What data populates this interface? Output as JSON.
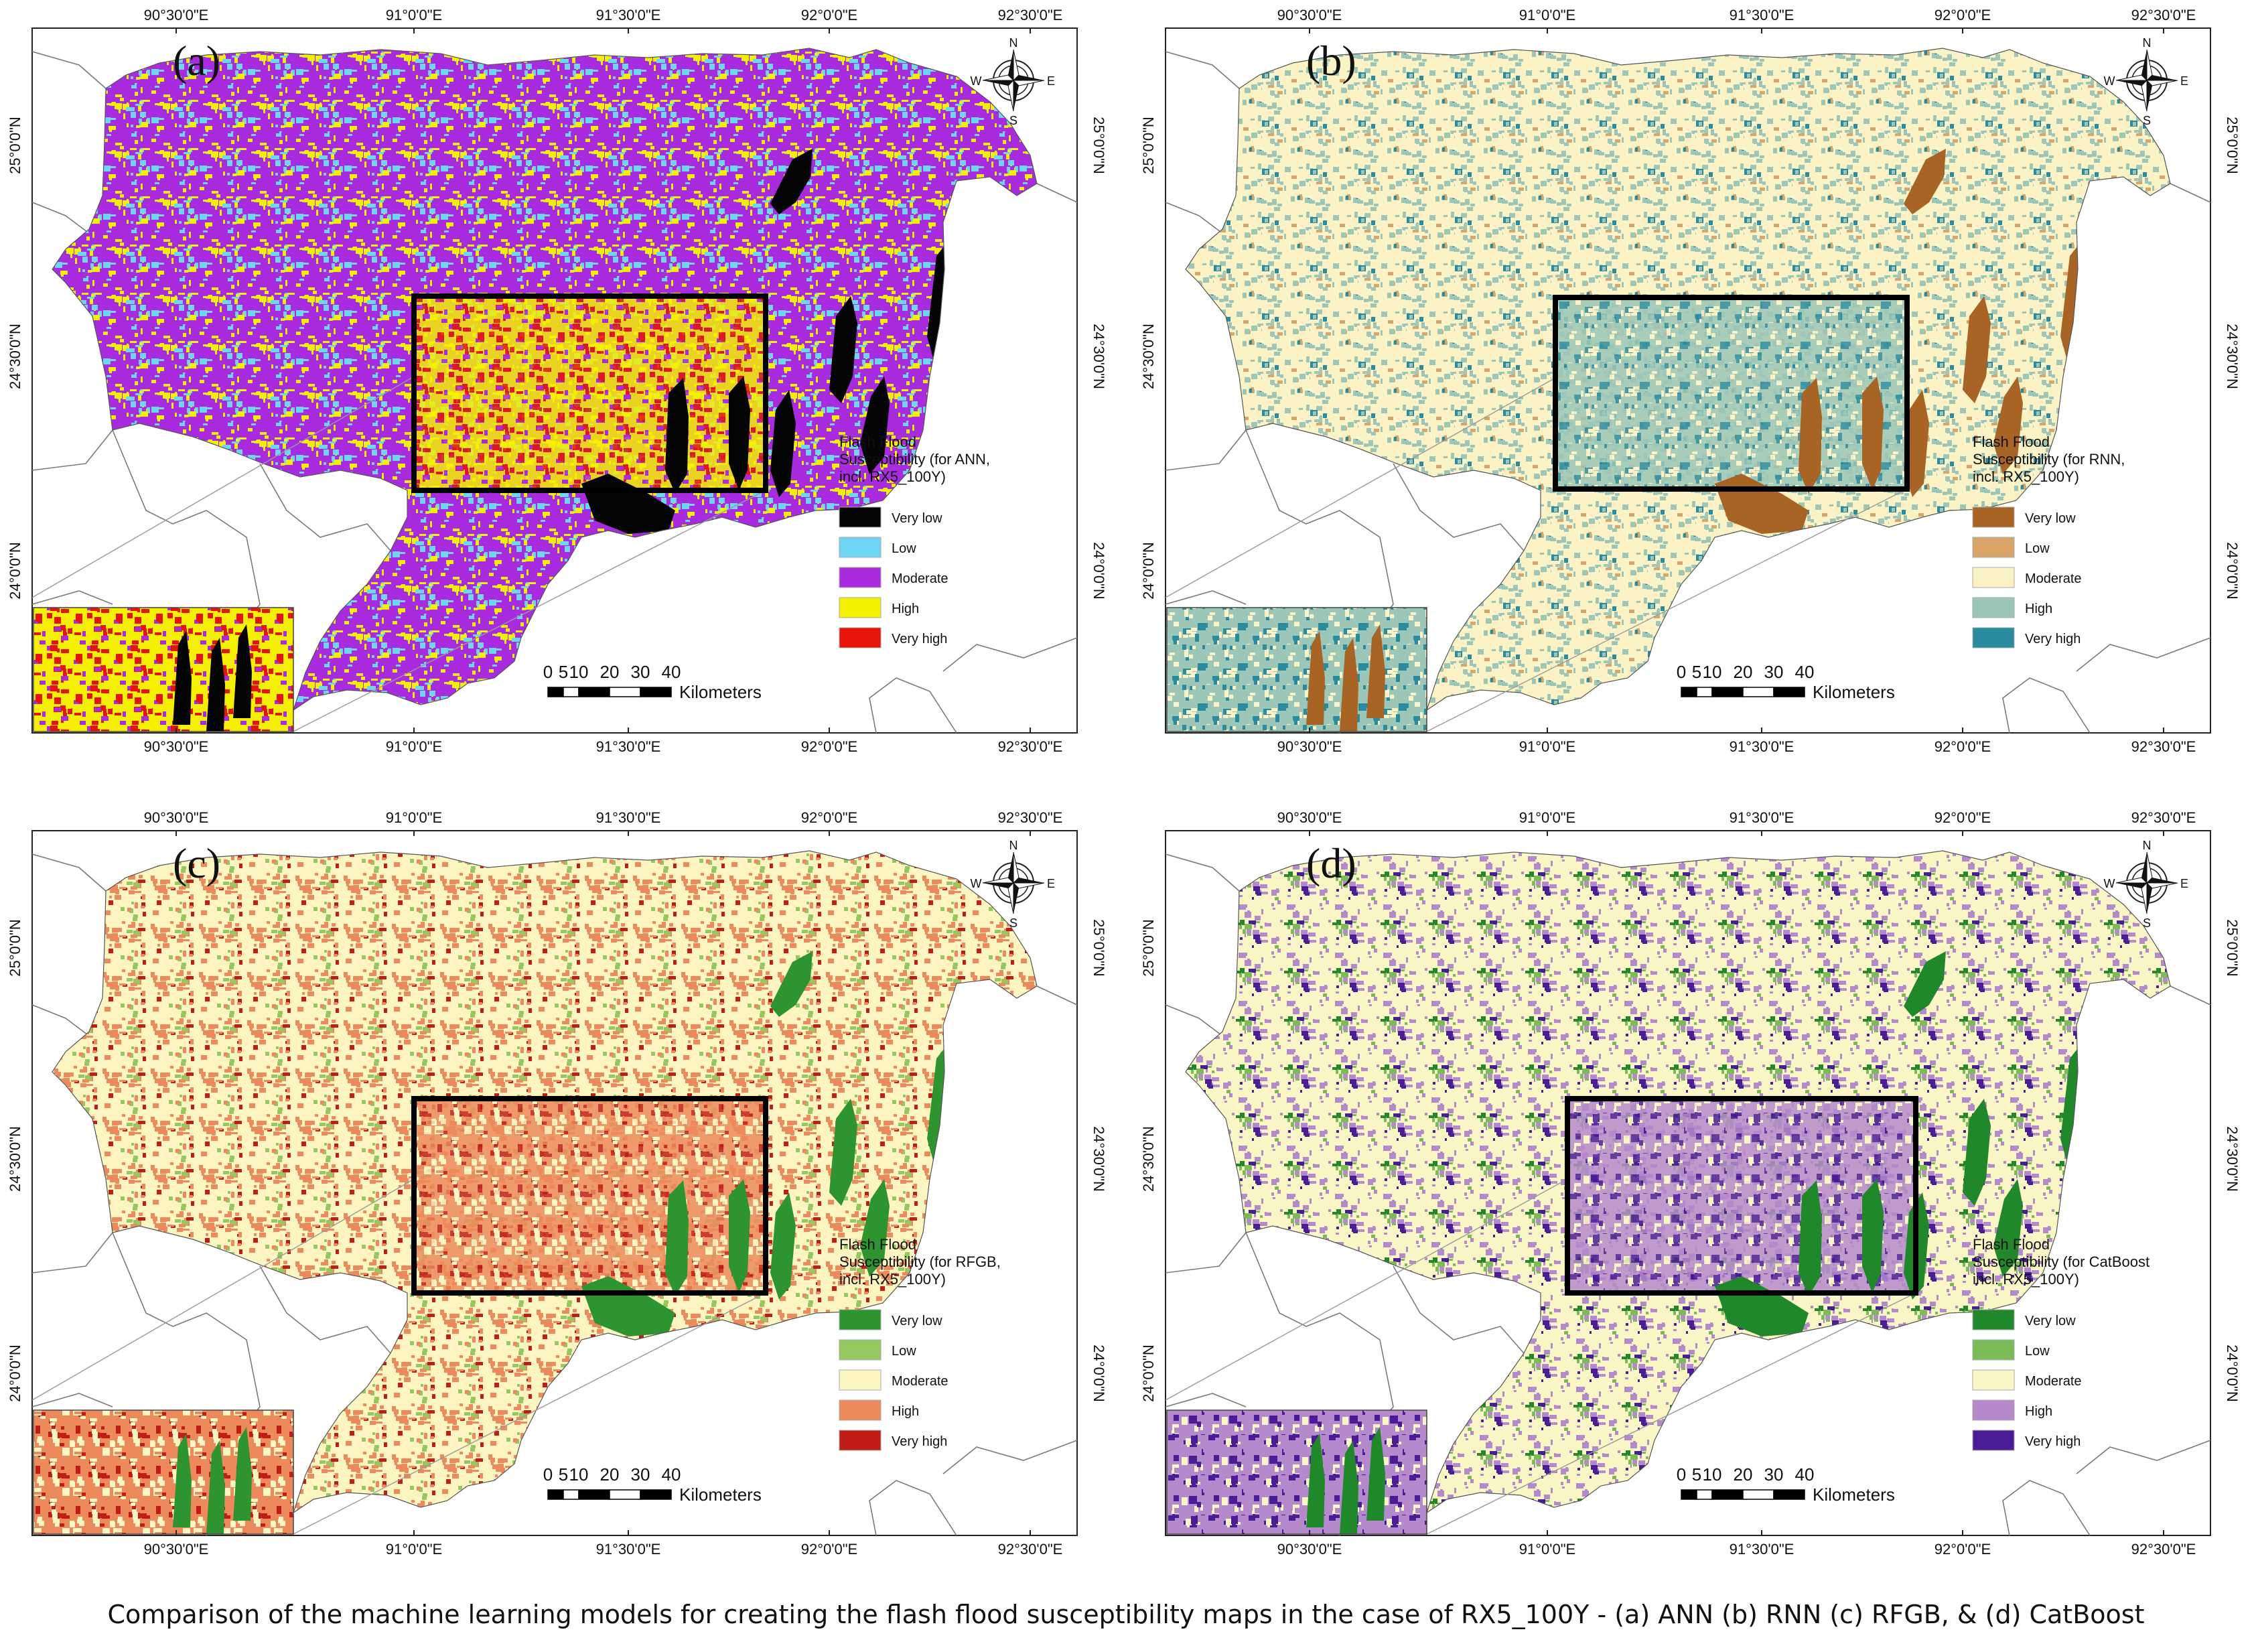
{
  "caption": "Comparison of the machine learning models for creating the flash flood susceptibility maps in the case of RX5_100Y - (a) ANN (b) RNN (c) RFGB, & (d) CatBoost",
  "lon_labels": [
    "90°30'0\"E",
    "91°0'0\"E",
    "91°30'0\"E",
    "92°0'0\"E",
    "92°30'0\"E"
  ],
  "lat_labels": [
    "25°0'0\"N",
    "24°30'0\"N",
    "24°0'0\"N"
  ],
  "legend_classes": [
    "Very low",
    "Low",
    "Moderate",
    "High",
    "Very high"
  ],
  "scalebar": {
    "numbers": [
      "0",
      "5",
      "10",
      "20",
      "30",
      "40"
    ],
    "unit": "Kilometers"
  },
  "compass": {
    "n": "N",
    "s": "S",
    "e": "E",
    "w": "W"
  },
  "panels": [
    {
      "id": "a",
      "label": "(a)",
      "model": "ANN",
      "legend_title": [
        "Flash Flood",
        "Susceptibility (for ANN,",
        "incl. RX5_100Y)"
      ],
      "colors": [
        "#050505",
        "#6ed6f2",
        "#a82be0",
        "#f5f000",
        "#e8140c"
      ]
    },
    {
      "id": "b",
      "label": "(b)",
      "model": "RNN",
      "legend_title": [
        "Flash Flood",
        "Susceptibility (for RNN,",
        "incl. RX5_100Y)"
      ],
      "colors": [
        "#a86424",
        "#d8a468",
        "#fbf3c6",
        "#9cc6b8",
        "#2a8a9e"
      ]
    },
    {
      "id": "c",
      "label": "(c)",
      "model": "RFGB",
      "legend_title": [
        "Flash Flood",
        "Susceptibility (for RFGB,",
        "incl. RX5_100Y)"
      ],
      "colors": [
        "#2e9430",
        "#96c860",
        "#fcf5c2",
        "#ec8a5c",
        "#c01c18"
      ]
    },
    {
      "id": "d",
      "label": "(d)",
      "model": "CatBoost",
      "legend_title": [
        "Flash Flood",
        "Susceptibility (for CatBoost",
        "incl. RX5_100Y)"
      ],
      "colors": [
        "#20882a",
        "#7cbc58",
        "#fbf6c6",
        "#b48acc",
        "#4a1c96"
      ]
    }
  ]
}
